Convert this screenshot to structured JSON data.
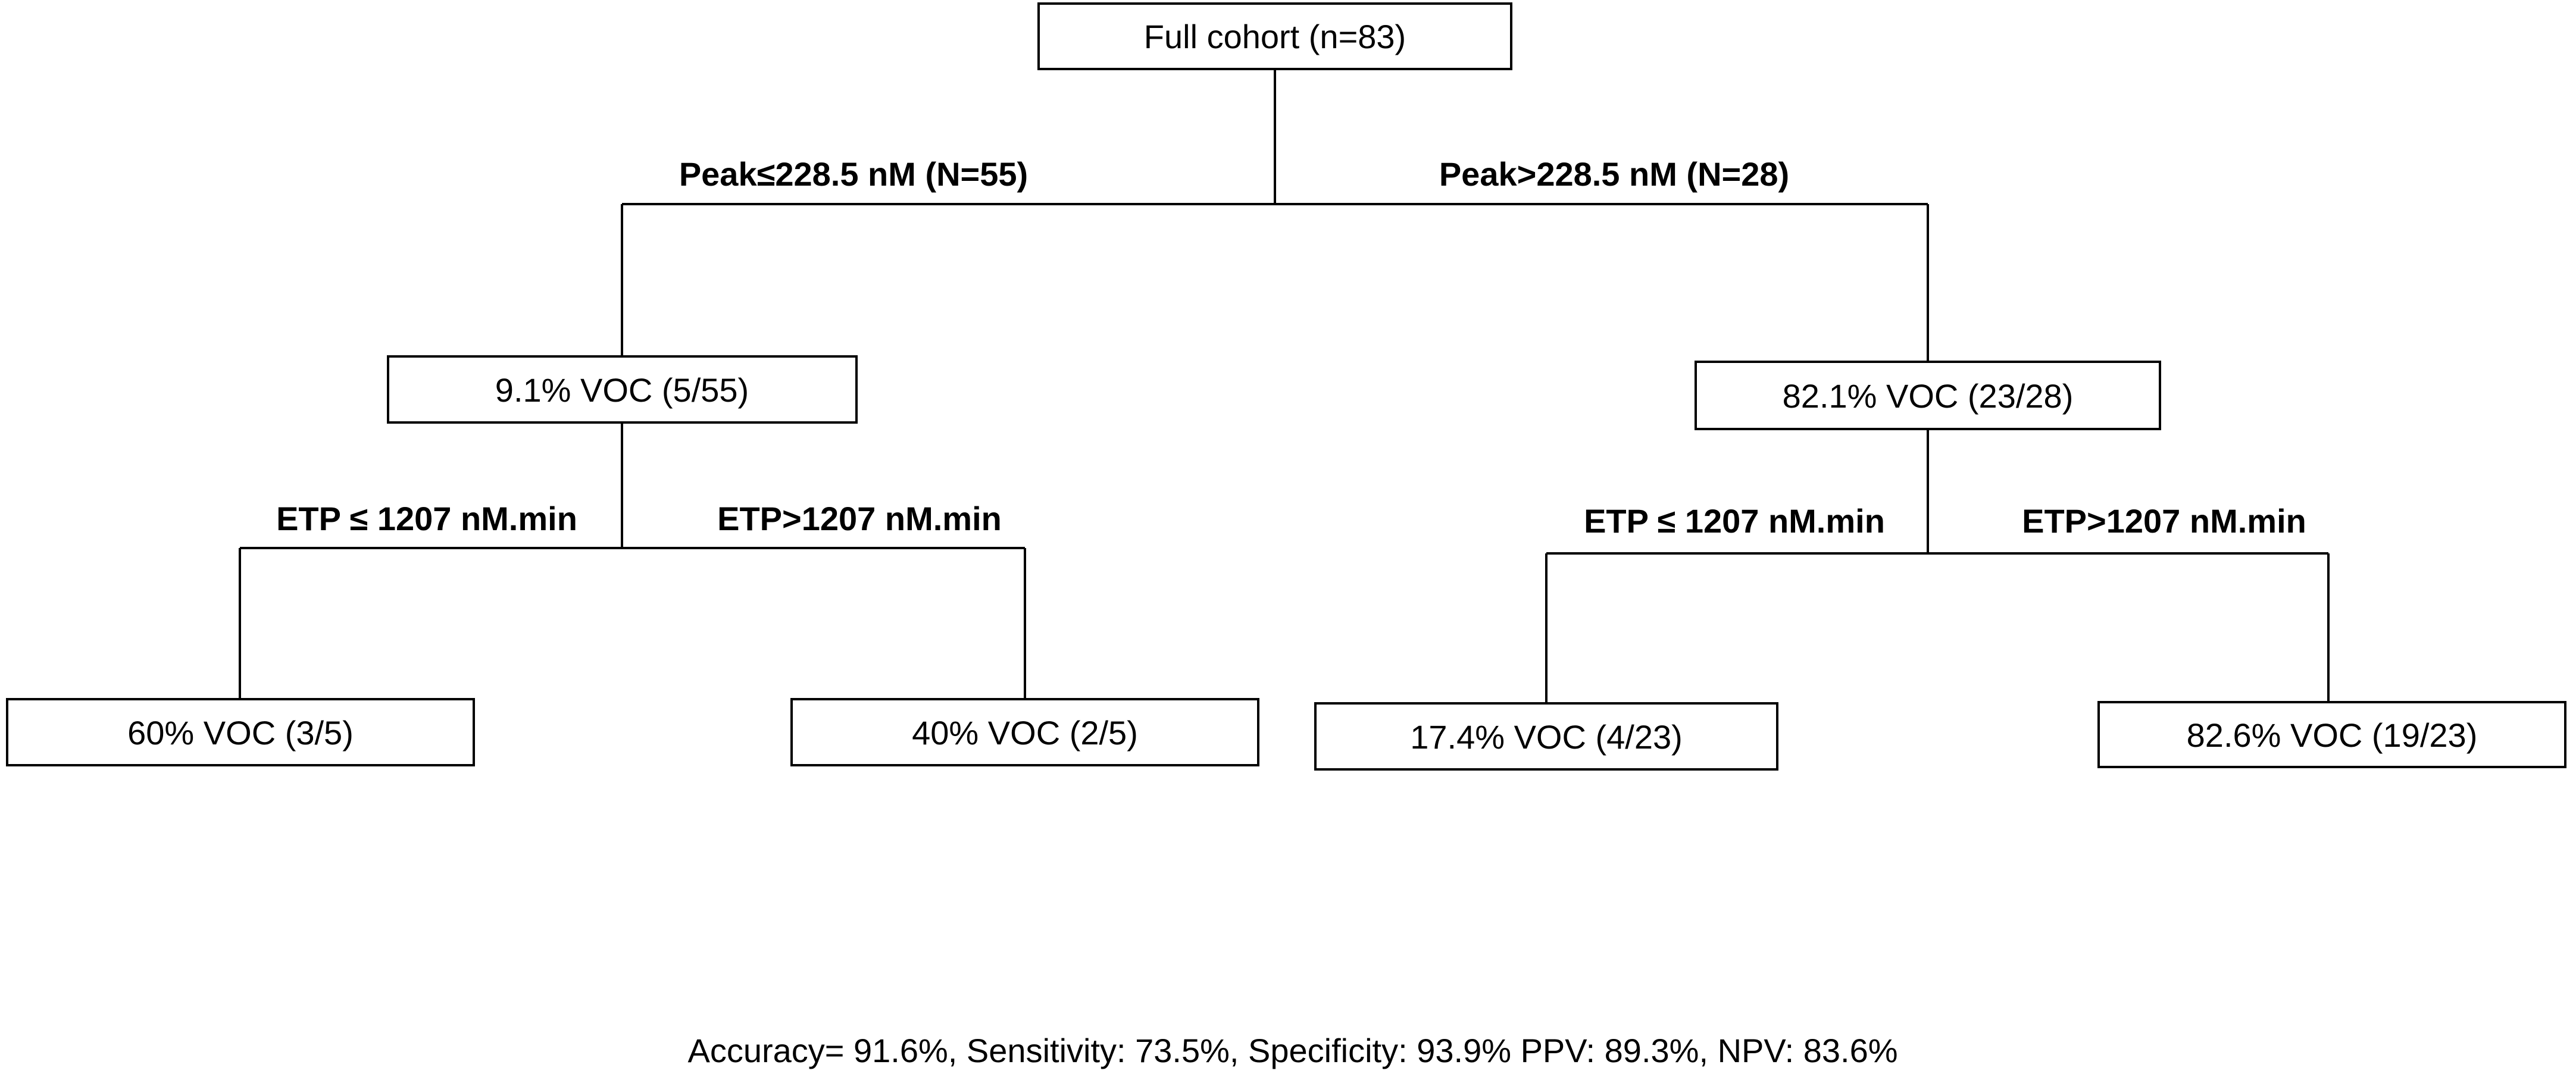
{
  "tree": {
    "root": {
      "label": "Full cohort (n=83)"
    },
    "level1": {
      "left": {
        "edge_label": "Peak≤228.5 nM (N=55)",
        "node_label": "9.1% VOC (5/55)"
      },
      "right": {
        "edge_label": "Peak>228.5 nM (N=28)",
        "node_label": "82.1% VOC (23/28)"
      }
    },
    "level2": {
      "left_left": {
        "edge_label": "ETP ≤ 1207 nM.min",
        "node_label": "60% VOC (3/5)"
      },
      "left_right": {
        "edge_label": "ETP>1207 nM.min",
        "node_label": "40% VOC (2/5)"
      },
      "right_left": {
        "edge_label": "ETP ≤ 1207 nM.min",
        "node_label": "17.4% VOC (4/23)"
      },
      "right_right": {
        "edge_label": "ETP>1207 nM.min",
        "node_label": "82.6% VOC (19/23)"
      }
    }
  },
  "footer": {
    "metrics": "Accuracy= 91.6%, Sensitivity: 73.5%, Specificity: 93.9% PPV: 89.3%, NPV: 83.6%"
  }
}
